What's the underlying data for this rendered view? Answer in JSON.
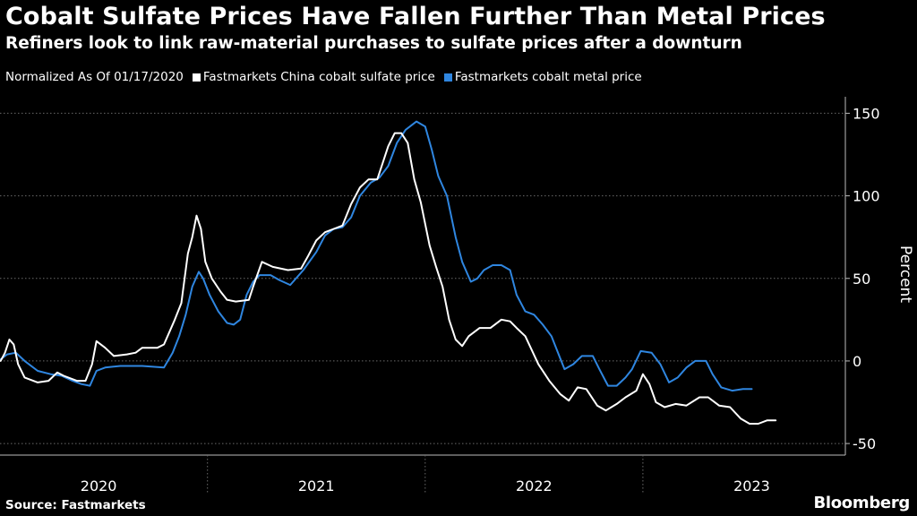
{
  "header": {
    "title": "Cobalt Sulfate Prices Have Fallen Further Than Metal Prices",
    "subtitle": "Refiners look to link raw-material purchases to sulfate prices after a downturn"
  },
  "legend": {
    "note": "Normalized As Of 01/17/2020",
    "items": [
      {
        "label": "Fastmarkets China cobalt sulfate price",
        "color": "#ffffff"
      },
      {
        "label": "Fastmarkets cobalt metal price",
        "color": "#2f86e0"
      }
    ]
  },
  "footer": {
    "source": "Source: Fastmarkets",
    "brand": "Bloomberg"
  },
  "chart_data": {
    "type": "line",
    "title": "Cobalt Sulfate Prices Have Fallen Further Than Metal Prices",
    "xlabel": "",
    "ylabel": "Percent",
    "ylim": [
      -57,
      160
    ],
    "xlim": [
      2020.047,
      2023.93
    ],
    "yticks": [
      150,
      100,
      50,
      0,
      -50
    ],
    "xticks": [
      2020,
      2021,
      2022,
      2023
    ],
    "grid": true,
    "legend_position": "top-left",
    "series": [
      {
        "name": "Fastmarkets China cobalt sulfate price",
        "color": "#ffffff",
        "points": [
          [
            2020.05,
            0
          ],
          [
            2020.07,
            5
          ],
          [
            2020.09,
            13
          ],
          [
            2020.11,
            10
          ],
          [
            2020.13,
            -2
          ],
          [
            2020.16,
            -10
          ],
          [
            2020.22,
            -13
          ],
          [
            2020.27,
            -12
          ],
          [
            2020.31,
            -7
          ],
          [
            2020.34,
            -9
          ],
          [
            2020.4,
            -12
          ],
          [
            2020.44,
            -12
          ],
          [
            2020.47,
            -2
          ],
          [
            2020.49,
            12
          ],
          [
            2020.53,
            8
          ],
          [
            2020.57,
            3
          ],
          [
            2020.63,
            4
          ],
          [
            2020.67,
            5
          ],
          [
            2020.7,
            8
          ],
          [
            2020.77,
            8
          ],
          [
            2020.8,
            10
          ],
          [
            2020.85,
            25
          ],
          [
            2020.88,
            35
          ],
          [
            2020.91,
            65
          ],
          [
            2020.93,
            75
          ],
          [
            2020.95,
            88
          ],
          [
            2020.97,
            80
          ],
          [
            2020.99,
            60
          ],
          [
            2021.02,
            50
          ],
          [
            2021.06,
            42
          ],
          [
            2021.09,
            37
          ],
          [
            2021.13,
            36
          ],
          [
            2021.19,
            37
          ],
          [
            2021.21,
            45
          ],
          [
            2021.25,
            60
          ],
          [
            2021.3,
            57
          ],
          [
            2021.37,
            55
          ],
          [
            2021.43,
            56
          ],
          [
            2021.46,
            63
          ],
          [
            2021.5,
            73
          ],
          [
            2021.54,
            78
          ],
          [
            2021.58,
            80
          ],
          [
            2021.62,
            82
          ],
          [
            2021.66,
            95
          ],
          [
            2021.7,
            105
          ],
          [
            2021.74,
            110
          ],
          [
            2021.78,
            110
          ],
          [
            2021.8,
            118
          ],
          [
            2021.83,
            130
          ],
          [
            2021.86,
            138
          ],
          [
            2021.89,
            138
          ],
          [
            2021.92,
            132
          ],
          [
            2021.95,
            110
          ],
          [
            2021.98,
            96
          ],
          [
            2022.02,
            70
          ],
          [
            2022.05,
            57
          ],
          [
            2022.08,
            45
          ],
          [
            2022.11,
            25
          ],
          [
            2022.14,
            13
          ],
          [
            2022.17,
            9
          ],
          [
            2022.2,
            15
          ],
          [
            2022.25,
            20
          ],
          [
            2022.3,
            20
          ],
          [
            2022.35,
            25
          ],
          [
            2022.39,
            24
          ],
          [
            2022.42,
            20
          ],
          [
            2022.46,
            15
          ],
          [
            2022.52,
            -2
          ],
          [
            2022.57,
            -12
          ],
          [
            2022.62,
            -20
          ],
          [
            2022.66,
            -24
          ],
          [
            2022.7,
            -16
          ],
          [
            2022.74,
            -17
          ],
          [
            2022.79,
            -27
          ],
          [
            2022.83,
            -30
          ],
          [
            2022.88,
            -26
          ],
          [
            2022.92,
            -22
          ],
          [
            2022.97,
            -18
          ],
          [
            2023.0,
            -8
          ],
          [
            2023.03,
            -14
          ],
          [
            2023.06,
            -25
          ],
          [
            2023.1,
            -28
          ],
          [
            2023.15,
            -26
          ],
          [
            2023.2,
            -27
          ],
          [
            2023.26,
            -22
          ],
          [
            2023.3,
            -22
          ],
          [
            2023.35,
            -27
          ],
          [
            2023.4,
            -28
          ],
          [
            2023.45,
            -35
          ],
          [
            2023.49,
            -38
          ],
          [
            2023.53,
            -38
          ],
          [
            2023.57,
            -36
          ],
          [
            2023.61,
            -36
          ]
        ]
      },
      {
        "name": "Fastmarkets cobalt metal price",
        "color": "#2f86e0",
        "points": [
          [
            2020.05,
            1
          ],
          [
            2020.08,
            4
          ],
          [
            2020.12,
            5
          ],
          [
            2020.16,
            0
          ],
          [
            2020.22,
            -6
          ],
          [
            2020.28,
            -8
          ],
          [
            2020.33,
            -9
          ],
          [
            2020.38,
            -12
          ],
          [
            2020.42,
            -14
          ],
          [
            2020.46,
            -15
          ],
          [
            2020.49,
            -6
          ],
          [
            2020.53,
            -4
          ],
          [
            2020.6,
            -3
          ],
          [
            2020.7,
            -3
          ],
          [
            2020.8,
            -4
          ],
          [
            2020.84,
            5
          ],
          [
            2020.87,
            15
          ],
          [
            2020.9,
            28
          ],
          [
            2020.93,
            45
          ],
          [
            2020.96,
            54
          ],
          [
            2020.98,
            50
          ],
          [
            2021.01,
            40
          ],
          [
            2021.05,
            30
          ],
          [
            2021.09,
            23
          ],
          [
            2021.12,
            22
          ],
          [
            2021.15,
            25
          ],
          [
            2021.18,
            40
          ],
          [
            2021.21,
            48
          ],
          [
            2021.24,
            52
          ],
          [
            2021.29,
            52
          ],
          [
            2021.33,
            49
          ],
          [
            2021.38,
            46
          ],
          [
            2021.44,
            55
          ],
          [
            2021.5,
            66
          ],
          [
            2021.54,
            76
          ],
          [
            2021.58,
            80
          ],
          [
            2021.62,
            81
          ],
          [
            2021.66,
            87
          ],
          [
            2021.7,
            100
          ],
          [
            2021.75,
            108
          ],
          [
            2021.79,
            111
          ],
          [
            2021.83,
            118
          ],
          [
            2021.87,
            132
          ],
          [
            2021.91,
            140
          ],
          [
            2021.96,
            145
          ],
          [
            2022.0,
            142
          ],
          [
            2022.03,
            128
          ],
          [
            2022.06,
            112
          ],
          [
            2022.1,
            100
          ],
          [
            2022.14,
            75
          ],
          [
            2022.17,
            60
          ],
          [
            2022.21,
            48
          ],
          [
            2022.24,
            50
          ],
          [
            2022.27,
            55
          ],
          [
            2022.31,
            58
          ],
          [
            2022.35,
            58
          ],
          [
            2022.39,
            55
          ],
          [
            2022.42,
            40
          ],
          [
            2022.46,
            30
          ],
          [
            2022.5,
            28
          ],
          [
            2022.54,
            22
          ],
          [
            2022.58,
            15
          ],
          [
            2022.61,
            5
          ],
          [
            2022.64,
            -5
          ],
          [
            2022.68,
            -2
          ],
          [
            2022.72,
            3
          ],
          [
            2022.77,
            3
          ],
          [
            2022.8,
            -5
          ],
          [
            2022.84,
            -15
          ],
          [
            2022.88,
            -15
          ],
          [
            2022.92,
            -10
          ],
          [
            2022.95,
            -5
          ],
          [
            2022.99,
            6
          ],
          [
            2023.04,
            5
          ],
          [
            2023.08,
            -2
          ],
          [
            2023.12,
            -13
          ],
          [
            2023.16,
            -10
          ],
          [
            2023.2,
            -4
          ],
          [
            2023.24,
            0
          ],
          [
            2023.29,
            0
          ],
          [
            2023.32,
            -8
          ],
          [
            2023.36,
            -16
          ],
          [
            2023.41,
            -18
          ],
          [
            2023.46,
            -17
          ],
          [
            2023.5,
            -17
          ]
        ]
      }
    ]
  }
}
